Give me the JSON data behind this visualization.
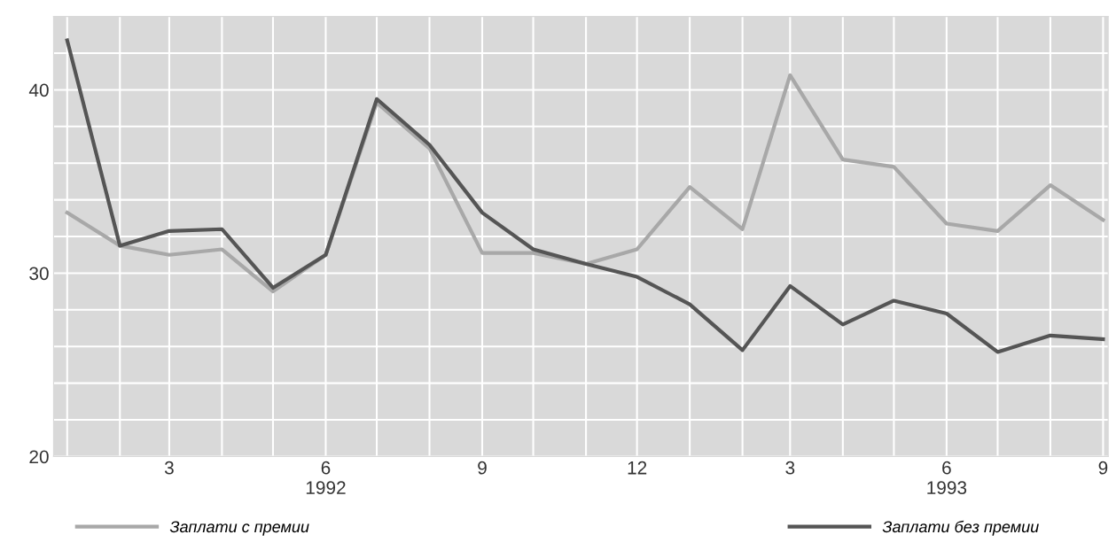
{
  "chart_data": {
    "type": "line",
    "x": [
      "1992-01",
      "1992-02",
      "1992-03",
      "1992-04",
      "1992-05",
      "1992-06",
      "1992-07",
      "1992-08",
      "1992-09",
      "1992-10",
      "1992-11",
      "1992-12",
      "1993-01",
      "1993-02",
      "1993-03",
      "1993-04",
      "1993-05",
      "1993-06",
      "1993-07",
      "1993-08",
      "1993-09"
    ],
    "series": [
      {
        "name": "Заплати с премии",
        "color": "#a8a8a8",
        "values": [
          33.3,
          31.5,
          31.0,
          31.3,
          29.0,
          31.0,
          39.3,
          36.8,
          31.1,
          31.1,
          30.5,
          31.3,
          34.7,
          32.4,
          40.8,
          36.2,
          35.8,
          32.7,
          32.3,
          34.8,
          32.9
        ]
      },
      {
        "name": "Заплати без премии",
        "color": "#555555",
        "values": [
          42.7,
          31.5,
          32.3,
          32.4,
          29.2,
          31.0,
          39.5,
          37.0,
          33.3,
          31.3,
          30.5,
          29.8,
          28.3,
          25.8,
          29.3,
          27.2,
          28.5,
          27.8,
          25.7,
          26.6,
          26.4
        ]
      }
    ],
    "xlim": [
      "1991-12-24",
      "1993-09-04"
    ],
    "xticks": [
      {
        "value": "1992-01",
        "label": null
      },
      {
        "value": "1992-02",
        "label": null
      },
      {
        "value": "1992-03",
        "label": "3"
      },
      {
        "value": "1992-04",
        "label": null
      },
      {
        "value": "1992-05",
        "label": null
      },
      {
        "value": "1992-06",
        "label": "6\n1992"
      },
      {
        "value": "1992-07",
        "label": null
      },
      {
        "value": "1992-08",
        "label": null
      },
      {
        "value": "1992-09",
        "label": "9"
      },
      {
        "value": "1992-10",
        "label": null
      },
      {
        "value": "1992-11",
        "label": null
      },
      {
        "value": "1992-12",
        "label": "12"
      },
      {
        "value": "1993-01",
        "label": null
      },
      {
        "value": "1993-02",
        "label": null
      },
      {
        "value": "1993-03",
        "label": "3"
      },
      {
        "value": "1993-04",
        "label": null
      },
      {
        "value": "1993-05",
        "label": null
      },
      {
        "value": "1993-06",
        "label": "6\n1993"
      },
      {
        "value": "1993-07",
        "label": null
      },
      {
        "value": "1993-08",
        "label": null
      },
      {
        "value": "1993-09",
        "label": "9"
      }
    ],
    "ylim": [
      20,
      44
    ],
    "yticks": [
      20,
      {
        "value": 22,
        "label": null
      },
      {
        "value": 24,
        "label": null
      },
      {
        "value": 26,
        "label": null
      },
      {
        "value": 28,
        "label": null
      },
      30,
      {
        "value": 32,
        "label": null
      },
      {
        "value": 34,
        "label": null
      },
      {
        "value": 36,
        "label": null
      },
      {
        "value": 38,
        "label": null
      },
      40,
      {
        "value": 42,
        "label": null
      }
    ],
    "grid": true,
    "legend": "bottom",
    "marker": "none",
    "line_style": "solid"
  }
}
